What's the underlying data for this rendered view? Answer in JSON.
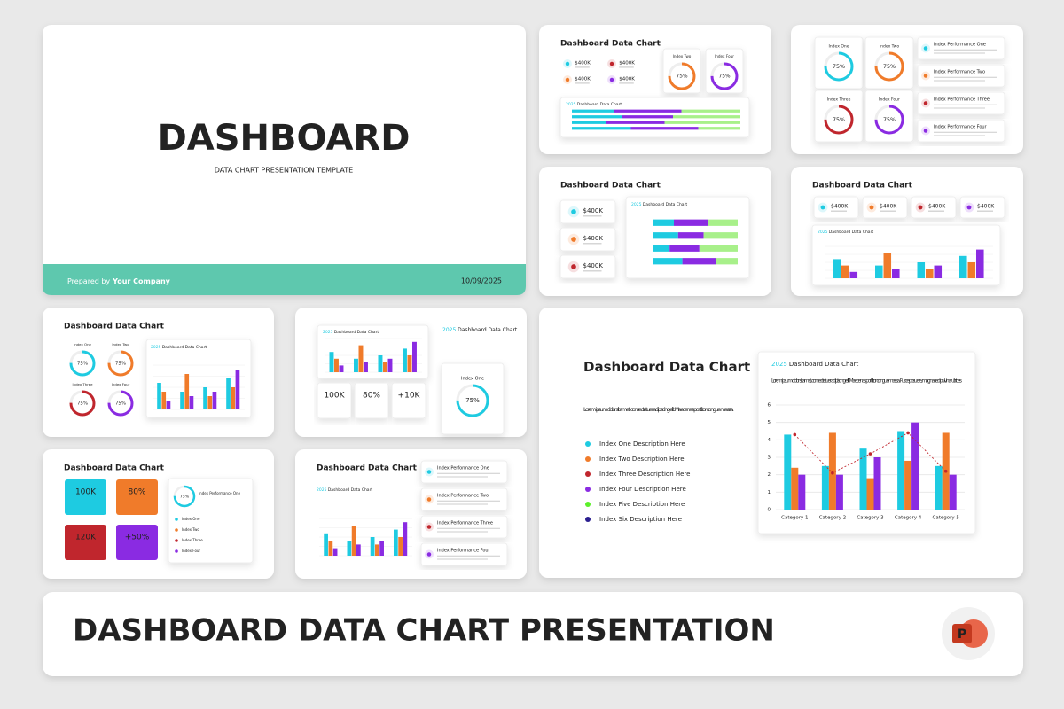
{
  "cover": {
    "title": "DASHBOARD",
    "subtitle": "DATA CHART PRESENTATION TEMPLATE",
    "prepared": "Prepared by",
    "company": "Your Company",
    "date": "10/09/2025"
  },
  "slide_title": "Dashboard Data Chart",
  "caption_year": "2025",
  "caption": "Dashboard Data Chart",
  "lorem": "Lorem ipsum dolor sit amet, consectetuer adipiscing elit. Maecenas porttitor congue massa.",
  "chart_lorem": "Lorem ipsum dolor sit amet, consectetuer adipiscing elit. Maecenas porttitor congue massa. Fusce posuere, magna sed pulvinar ultricies",
  "amount": "$400K",
  "gauges": [
    {
      "name": "Index One",
      "value": 75,
      "label": "75%",
      "color": "#1ecbe1"
    },
    {
      "name": "Index Two",
      "value": 75,
      "label": "75%",
      "color": "#f07b2a"
    },
    {
      "name": "Index Three",
      "value": 75,
      "label": "75%",
      "color": "#c0262d"
    },
    {
      "name": "Index Four",
      "value": 75,
      "label": "75%",
      "color": "#8a2be2"
    }
  ],
  "performance": [
    "Index Performance One",
    "Index Performance Two",
    "Index Performance Three",
    "Index Performance Four"
  ],
  "kpis": [
    {
      "text": "100K",
      "color": "#1ecbe1"
    },
    {
      "text": "80%",
      "color": "#f07b2a"
    },
    {
      "text": "120K",
      "color": "#c0262d"
    },
    {
      "text": "+50%",
      "color": "#8a2be2"
    },
    {
      "text": "+10K",
      "color": "#c0262d"
    }
  ],
  "legend": [
    {
      "text": "Index One Description Here",
      "color": "#1ecbe1"
    },
    {
      "text": "Index Two Description Here",
      "color": "#f07b2a"
    },
    {
      "text": "Index Three Description Here",
      "color": "#c0262d"
    },
    {
      "text": "Index Four Description Here",
      "color": "#8a2be2"
    },
    {
      "text": "Index Five Description Here",
      "color": "#5cf02a"
    },
    {
      "text": "Index Six Description Here",
      "color": "#2b1e8f"
    }
  ],
  "chart_data": {
    "type": "bar",
    "categories": [
      "Category 1",
      "Category 2",
      "Category 3",
      "Category 4",
      "Category 5"
    ],
    "series": [
      {
        "color": "#1ecbe1",
        "values": [
          4.3,
          2.5,
          3.5,
          4.5,
          2.5
        ]
      },
      {
        "color": "#f07b2a",
        "values": [
          2.4,
          4.4,
          1.8,
          2.8,
          4.4
        ]
      },
      {
        "color": "#8a2be2",
        "values": [
          2.0,
          2.0,
          3.0,
          5.0,
          2.0
        ]
      },
      {
        "type": "line",
        "color": "#c0262d",
        "values": [
          4.3,
          2.1,
          3.2,
          4.4,
          2.2
        ]
      }
    ],
    "ylim": [
      0,
      6
    ],
    "yticks": [
      0,
      1,
      2,
      3,
      4,
      5,
      6
    ],
    "grid": true
  },
  "mini_chart": {
    "type": "bar",
    "series": [
      {
        "color": "#1ecbe1",
        "values": [
          3,
          2,
          2.5,
          3.5
        ]
      },
      {
        "color": "#f07b2a",
        "values": [
          2,
          4,
          1.5,
          2.5
        ]
      },
      {
        "color": "#8a2be2",
        "values": [
          1,
          1.5,
          2,
          4.5
        ]
      }
    ],
    "ylim": [
      0,
      5
    ]
  },
  "stacked_chart": {
    "type": "stacked-bar",
    "series": [
      {
        "color": "#1ecbe1",
        "values": [
          25,
          30,
          20,
          35
        ]
      },
      {
        "color": "#8a2be2",
        "values": [
          40,
          30,
          35,
          40
        ]
      },
      {
        "color": "#a8f08a",
        "values": [
          35,
          40,
          45,
          25
        ]
      }
    ],
    "xlim": [
      0,
      100
    ]
  },
  "banner": "DASHBOARD DATA CHART PRESENTATION",
  "icon_letter": "P"
}
